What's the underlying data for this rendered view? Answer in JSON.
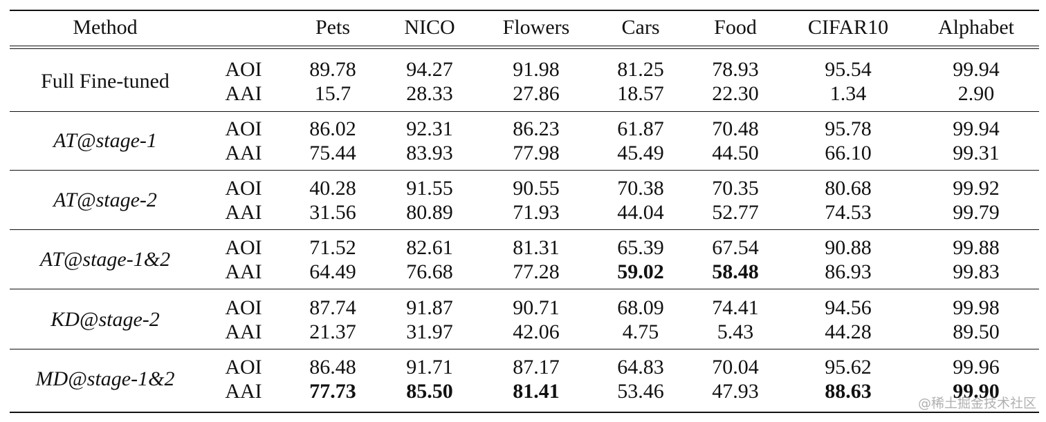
{
  "header": [
    "Method",
    "",
    "Pets",
    "NICO",
    "Flowers",
    "Cars",
    "Food",
    "CIFAR10",
    "Alphabet"
  ],
  "rows": [
    {
      "method": "Full Fine-tuned",
      "italic": false,
      "metrics": [
        {
          "name": "AOI",
          "values": [
            "89.78",
            "94.27",
            "91.98",
            "81.25",
            "78.93",
            "95.54",
            "99.94"
          ],
          "bold": [
            false,
            false,
            false,
            false,
            false,
            false,
            false
          ]
        },
        {
          "name": "AAI",
          "values": [
            "15.7",
            "28.33",
            "27.86",
            "18.57",
            "22.30",
            "1.34",
            "2.90"
          ],
          "bold": [
            false,
            false,
            false,
            false,
            false,
            false,
            false
          ]
        }
      ]
    },
    {
      "method": "AT@stage-1",
      "italic": true,
      "metrics": [
        {
          "name": "AOI",
          "values": [
            "86.02",
            "92.31",
            "86.23",
            "61.87",
            "70.48",
            "95.78",
            "99.94"
          ],
          "bold": [
            false,
            false,
            false,
            false,
            false,
            false,
            false
          ]
        },
        {
          "name": "AAI",
          "values": [
            "75.44",
            "83.93",
            "77.98",
            "45.49",
            "44.50",
            "66.10",
            "99.31"
          ],
          "bold": [
            false,
            false,
            false,
            false,
            false,
            false,
            false
          ]
        }
      ]
    },
    {
      "method": "AT@stage-2",
      "italic": true,
      "metrics": [
        {
          "name": "AOI",
          "values": [
            "40.28",
            "91.55",
            "90.55",
            "70.38",
            "70.35",
            "80.68",
            "99.92"
          ],
          "bold": [
            false,
            false,
            false,
            false,
            false,
            false,
            false
          ]
        },
        {
          "name": "AAI",
          "values": [
            "31.56",
            "80.89",
            "71.93",
            "44.04",
            "52.77",
            "74.53",
            "99.79"
          ],
          "bold": [
            false,
            false,
            false,
            false,
            false,
            false,
            false
          ]
        }
      ]
    },
    {
      "method": "AT@stage-1&2",
      "italic": true,
      "metrics": [
        {
          "name": "AOI",
          "values": [
            "71.52",
            "82.61",
            "81.31",
            "65.39",
            "67.54",
            "90.88",
            "99.88"
          ],
          "bold": [
            false,
            false,
            false,
            false,
            false,
            false,
            false
          ]
        },
        {
          "name": "AAI",
          "values": [
            "64.49",
            "76.68",
            "77.28",
            "59.02",
            "58.48",
            "86.93",
            "99.83"
          ],
          "bold": [
            false,
            false,
            false,
            true,
            true,
            false,
            false
          ]
        }
      ]
    },
    {
      "method": "KD@stage-2",
      "italic": true,
      "metrics": [
        {
          "name": "AOI",
          "values": [
            "87.74",
            "91.87",
            "90.71",
            "68.09",
            "74.41",
            "94.56",
            "99.98"
          ],
          "bold": [
            false,
            false,
            false,
            false,
            false,
            false,
            false
          ]
        },
        {
          "name": "AAI",
          "values": [
            "21.37",
            "31.97",
            "42.06",
            "4.75",
            "5.43",
            "44.28",
            "89.50"
          ],
          "bold": [
            false,
            false,
            false,
            false,
            false,
            false,
            false
          ]
        }
      ]
    },
    {
      "method": "MD@stage-1&2",
      "italic": true,
      "metrics": [
        {
          "name": "AOI",
          "values": [
            "86.48",
            "91.71",
            "87.17",
            "64.83",
            "70.04",
            "95.62",
            "99.96"
          ],
          "bold": [
            false,
            false,
            false,
            false,
            false,
            false,
            false
          ]
        },
        {
          "name": "AAI",
          "values": [
            "77.73",
            "85.50",
            "81.41",
            "53.46",
            "47.93",
            "88.63",
            "99.90"
          ],
          "bold": [
            true,
            true,
            true,
            false,
            false,
            true,
            true
          ]
        }
      ]
    }
  ],
  "watermark": "@稀土掘金技术社区"
}
